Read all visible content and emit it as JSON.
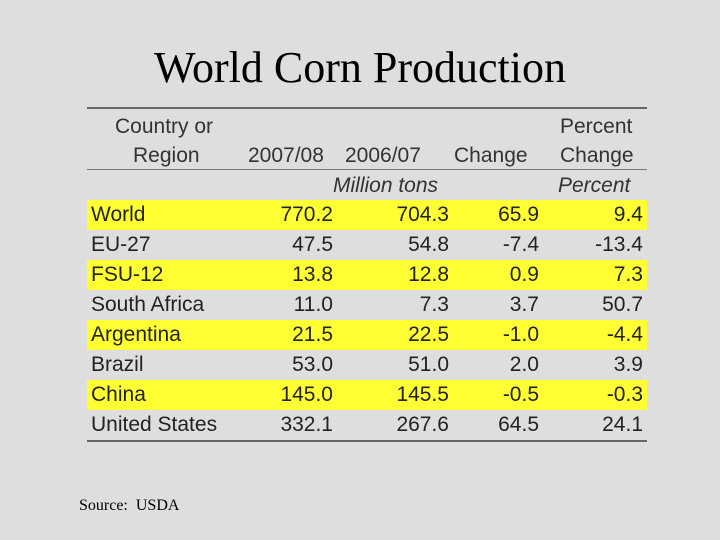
{
  "title": "World Corn Production",
  "table": {
    "headers": {
      "country_line1": "Country or",
      "country_line2": "Region",
      "y2007": "2007/08",
      "y2006": "2006/07",
      "change": "Change",
      "pct_line1": "Percent",
      "pct_line2": "Change"
    },
    "units": {
      "million_tons": "Million tons",
      "percent": "Percent"
    },
    "rows": [
      {
        "region": "World",
        "y2007": "770.2",
        "y2006": "704.3",
        "change": "65.9",
        "pct": "9.4",
        "highlight": true
      },
      {
        "region": "EU-27",
        "y2007": "47.5",
        "y2006": "54.8",
        "change": "-7.4",
        "pct": "-13.4",
        "highlight": false
      },
      {
        "region": "FSU-12",
        "y2007": "13.8",
        "y2006": "12.8",
        "change": "0.9",
        "pct": "7.3",
        "highlight": true
      },
      {
        "region": "South Africa",
        "y2007": "11.0",
        "y2006": "7.3",
        "change": "3.7",
        "pct": "50.7",
        "highlight": false
      },
      {
        "region": "Argentina",
        "y2007": "21.5",
        "y2006": "22.5",
        "change": "-1.0",
        "pct": "-4.4",
        "highlight": true
      },
      {
        "region": "Brazil",
        "y2007": "53.0",
        "y2006": "51.0",
        "change": "2.0",
        "pct": "3.9",
        "highlight": false
      },
      {
        "region": "China",
        "y2007": "145.0",
        "y2006": "145.5",
        "change": "-0.5",
        "pct": "-0.3",
        "highlight": true
      },
      {
        "region": "United States",
        "y2007": "332.1",
        "y2006": "267.6",
        "change": "64.5",
        "pct": "24.1",
        "highlight": false
      }
    ]
  },
  "source": "Source:  USDA",
  "colors": {
    "background": "#dedede",
    "highlight": "#ffff33"
  }
}
